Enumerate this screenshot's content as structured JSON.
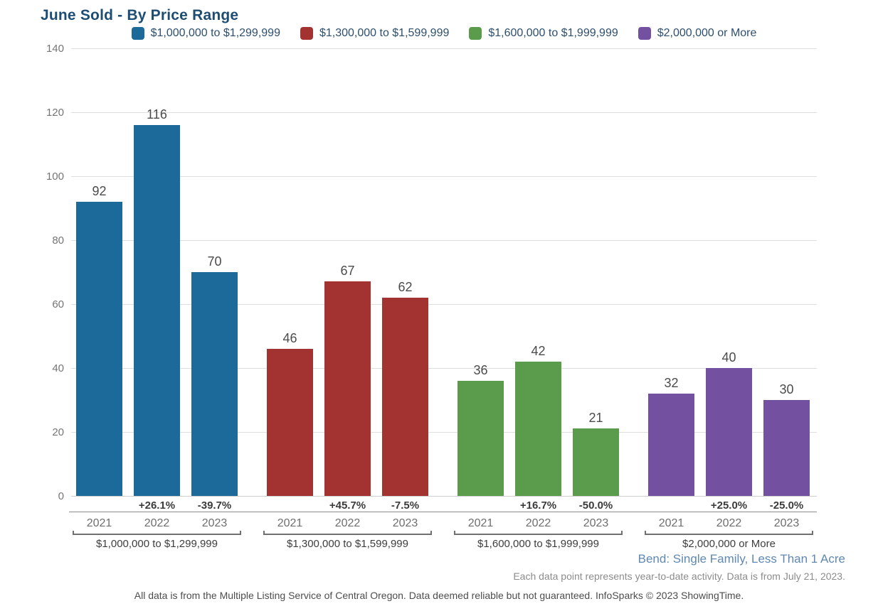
{
  "title": "June Sold - By Price Range",
  "palette": {
    "title_text": "#1e4d74",
    "legend_text": "#2d4f6d",
    "location_note_text": "#5f88b2",
    "gridline": "#dedede",
    "series_blue": "#1b6a9a",
    "series_red": "#a23331",
    "series_green": "#5b9b4c",
    "series_purple": "#7450a0"
  },
  "chart_data": {
    "type": "bar",
    "title": "June Sold - By Price Range",
    "categories": [
      "2021",
      "2022",
      "2023"
    ],
    "groups": [
      {
        "label": "$1,000,000 to $1,299,999",
        "color": "#1b6a9a",
        "values": [
          92,
          116,
          70
        ],
        "pct_change": [
          "",
          "+26.1%",
          "-39.7%"
        ]
      },
      {
        "label": "$1,300,000 to $1,599,999",
        "color": "#a23331",
        "values": [
          46,
          67,
          62
        ],
        "pct_change": [
          "",
          "+45.7%",
          "-7.5%"
        ]
      },
      {
        "label": "$1,600,000 to $1,999,999",
        "color": "#5b9b4c",
        "values": [
          36,
          42,
          21
        ],
        "pct_change": [
          "",
          "+16.7%",
          "-50.0%"
        ]
      },
      {
        "label": "$2,000,000 or More",
        "color": "#7450a0",
        "values": [
          32,
          40,
          30
        ],
        "pct_change": [
          "",
          "+25.0%",
          "-25.0%"
        ]
      }
    ],
    "xlabel": "",
    "ylabel": "",
    "ylim": [
      0,
      140
    ],
    "yticks": [
      0,
      20,
      40,
      60,
      80,
      100,
      120,
      140
    ],
    "grid": true,
    "legend_position": "top",
    "value_labels": "above bars"
  },
  "notes": {
    "location": "Bend: Single Family, Less Than 1 Acre",
    "ytd": "Each data point represents year-to-date activity. Data is from July 21, 2023.",
    "disclaimer": "All data is from the Multiple Listing Service of Central Oregon. Data deemed reliable but not guaranteed. InfoSparks © 2023 ShowingTime."
  }
}
